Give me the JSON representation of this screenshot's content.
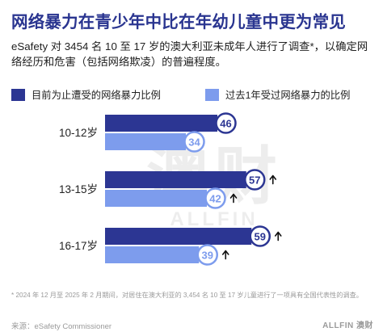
{
  "title": "网络暴力在青少年中比在年幼儿童中更为常见",
  "subtitle": "eSafety 对 3454 名 10 至 17 岁的澳大利亚未成年人进行了调查*，以确定网络经历和危害（包括网络欺凌）的普遍程度。",
  "footnote": "* 2024 年 12 月至 2025 年 2 月期间，对居住在澳大利亚的 3,454 名 10 至 17 岁儿童进行了一项具有全国代表性的调查。",
  "source": "来源：eSafety Commissioner",
  "logo": "ALLFIN 澳财",
  "watermark": {
    "big": "澳财",
    "small": "ALLFIN"
  },
  "colors": {
    "title": "#2a3590",
    "current": "#2c3693",
    "past": "#7d9ced"
  },
  "chart_data": {
    "type": "bar",
    "orientation": "horizontal",
    "categories": [
      "10-12岁",
      "13-15岁",
      "16-17岁"
    ],
    "series": [
      {
        "name": "目前为止遭受的网络暴力比例",
        "values": [
          46,
          57,
          59
        ],
        "color": "#2c3693"
      },
      {
        "name": "过去1年受过网络暴力的比例",
        "values": [
          34,
          42,
          39
        ],
        "color": "#7d9ced"
      }
    ],
    "up_arrows": [
      [
        false,
        false
      ],
      [
        true,
        true
      ],
      [
        true,
        true
      ]
    ],
    "xlim": [
      0,
      100
    ],
    "xlabel": "",
    "ylabel": "",
    "legend": "top",
    "grid": false
  }
}
